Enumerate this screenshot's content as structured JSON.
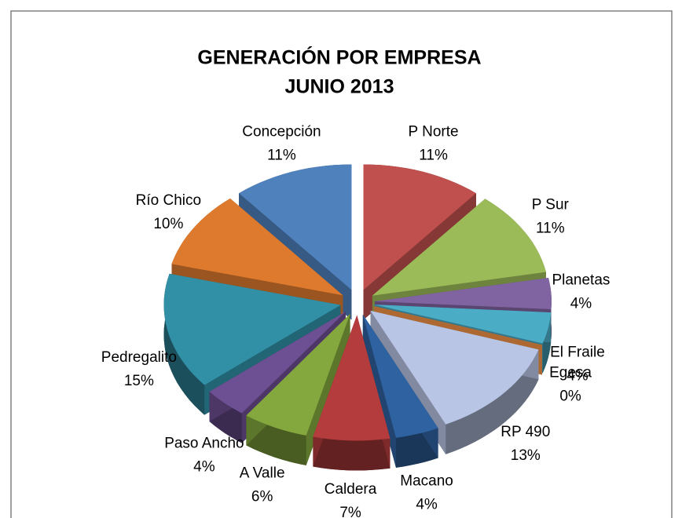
{
  "chart_data": {
    "type": "pie3d",
    "title": "GENERACIÓN  POR  EMPRESA",
    "subtitle": "JUNIO  2013",
    "categories": [
      "P Norte",
      "P Sur",
      "Planetas",
      "El Fraile",
      "Egesa",
      "RP 490",
      "Macano",
      "Caldera",
      "A Valle",
      "Paso Ancho",
      "Pedregalito",
      "Río Chico",
      "Concepción"
    ],
    "values": [
      11,
      11,
      4,
      4,
      0,
      13,
      4,
      7,
      6,
      4,
      15,
      10,
      11
    ],
    "value_labels": [
      "11%",
      "11%",
      "4%",
      "4%",
      "0%",
      "13%",
      "4%",
      "7%",
      "6%",
      "4%",
      "15%",
      "10%",
      "11%"
    ],
    "colors": [
      "#c0504d",
      "#9bbb59",
      "#8064a2",
      "#4bacc6",
      "#f79646",
      "#b8c5e5",
      "#2f62a0",
      "#b43c3c",
      "#84a83e",
      "#6d4f93",
      "#3190a6",
      "#dd7a2e",
      "#4f81bd"
    ]
  }
}
